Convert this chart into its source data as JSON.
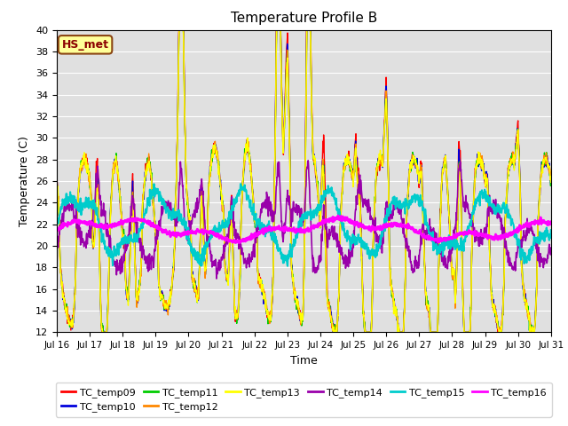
{
  "title": "Temperature Profile B",
  "xlabel": "Time",
  "ylabel": "Temperature (C)",
  "ylim": [
    12,
    40
  ],
  "yticks": [
    12,
    14,
    16,
    18,
    20,
    22,
    24,
    26,
    28,
    30,
    32,
    34,
    36,
    38,
    40
  ],
  "annotation": "HS_met",
  "series_colors": {
    "TC_temp09": "#ff0000",
    "TC_temp10": "#0000dd",
    "TC_temp11": "#00cc00",
    "TC_temp12": "#ff8800",
    "TC_temp13": "#ffff00",
    "TC_temp14": "#9900aa",
    "TC_temp15": "#00cccc",
    "TC_temp16": "#ff00ff"
  },
  "legend_order": [
    "TC_temp09",
    "TC_temp10",
    "TC_temp11",
    "TC_temp12",
    "TC_temp13",
    "TC_temp14",
    "TC_temp15",
    "TC_temp16"
  ],
  "background_color": "#e0e0e0",
  "grid_color": "#ffffff",
  "n_points": 1440,
  "x_start": 16.0,
  "x_end": 31.0,
  "xtick_positions": [
    16,
    17,
    18,
    19,
    20,
    21,
    22,
    23,
    24,
    25,
    26,
    27,
    28,
    29,
    30,
    31
  ],
  "xtick_labels": [
    "Jul 16",
    "Jul 17",
    "Jul 18",
    "Jul 19",
    "Jul 20",
    "Jul 21",
    "Jul 22",
    "Jul 23",
    "Jul 24",
    "Jul 25",
    "Jul 26",
    "Jul 27",
    "Jul 28",
    "Jul 29",
    "Jul 30",
    "Jul 31"
  ]
}
